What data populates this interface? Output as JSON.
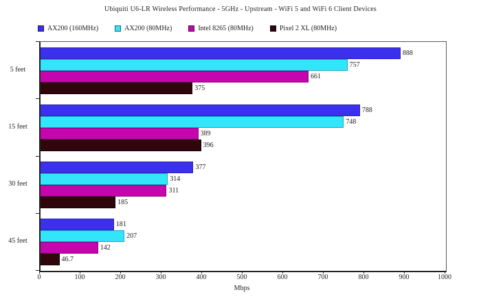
{
  "chart_data": {
    "type": "bar",
    "orientation": "horizontal",
    "title": "Ubiquiti U6-LR Wireless Performance - 5GHz - Upstream - WiFi 5 and WiFi 6 Client Devices",
    "xlabel": "Mbps",
    "xlim": [
      0,
      1000
    ],
    "x_ticks": [
      0,
      100,
      200,
      300,
      400,
      500,
      600,
      700,
      800,
      900,
      1000
    ],
    "grid": false,
    "legend_position": "top",
    "categories": [
      "5 feet",
      "15 feet",
      "30 feet",
      "45 feet"
    ],
    "series": [
      {
        "name": "AX200 (160MHz)",
        "color": "#3B31EC",
        "border_color": "#2A20B4",
        "values": [
          888,
          788,
          377,
          181
        ]
      },
      {
        "name": "AX200 (80MHz)",
        "color": "#33E5FB",
        "border_color": "#14A8C4",
        "values": [
          757,
          748,
          314,
          207
        ]
      },
      {
        "name": "Intel 8265 (80MHz)",
        "color": "#C505AE",
        "border_color": "#8A0378",
        "values": [
          661,
          389,
          311,
          142
        ]
      },
      {
        "name": "Pixel 2 XL (80MHz)",
        "color": "#2E060B",
        "border_color": "#190204",
        "values": [
          375,
          396,
          185,
          46.7
        ]
      }
    ]
  }
}
